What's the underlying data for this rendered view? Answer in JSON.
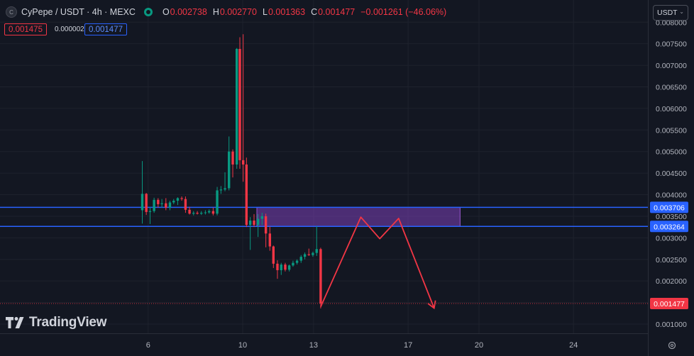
{
  "header": {
    "symbol_icon": "C",
    "symbol": "CyPepe / USDT · 4h · MEXC",
    "status_icon": "market-open-dot",
    "open_key": "O",
    "open": "0.002738",
    "high_key": "H",
    "high": "0.002770",
    "low_key": "L",
    "low": "0.001363",
    "close_key": "C",
    "close": "0.001477",
    "change": "−0.001261 (−46.06%)"
  },
  "price_boxes": {
    "bid": "0.001475",
    "spread": "0.000002",
    "ask": "0.001477"
  },
  "currency": {
    "label": "USDT",
    "icon": "chevron-down-icon"
  },
  "logo": {
    "text": "TradingView"
  },
  "colors": {
    "background": "#131722",
    "up": "#089981",
    "down": "#f23645",
    "level_line": "#2962ff",
    "zone_fill": "#7b3fb8",
    "projection": "#f23645",
    "grid": "#1e222d"
  },
  "chart_data": {
    "type": "candlestick",
    "y_axis": {
      "range": [
        0.00065,
        0.0079
      ],
      "ticks": [
        "0.001000",
        "0.001500",
        "0.002000",
        "0.002500",
        "0.003000",
        "0.003500",
        "0.004000",
        "0.004500",
        "0.005000",
        "0.005500",
        "0.006000",
        "0.006500",
        "0.007000",
        "0.007500",
        "0.008000"
      ],
      "tick_values": [
        0.001,
        0.0015,
        0.002,
        0.0025,
        0.003,
        0.0035,
        0.004,
        0.0045,
        0.005,
        0.0055,
        0.006,
        0.0065,
        0.007,
        0.0075,
        0.008
      ]
    },
    "x_axis": {
      "range": [
        0,
        34
      ],
      "ticks": [
        {
          "x": 5.7,
          "label": "6"
        },
        {
          "x": 9.7,
          "label": "10"
        },
        {
          "x": 12.7,
          "label": "13"
        },
        {
          "x": 16.7,
          "label": "17"
        },
        {
          "x": 19.7,
          "label": "20"
        },
        {
          "x": 23.7,
          "label": "24"
        }
      ]
    },
    "candles": [
      {
        "x": 5.45,
        "o": 0.00364,
        "h": 0.00478,
        "l": 0.00333,
        "c": 0.00402
      },
      {
        "x": 5.62,
        "o": 0.00402,
        "h": 0.00404,
        "l": 0.00353,
        "c": 0.0036
      },
      {
        "x": 5.78,
        "o": 0.0036,
        "h": 0.00372,
        "l": 0.00332,
        "c": 0.00362
      },
      {
        "x": 5.95,
        "o": 0.00362,
        "h": 0.00393,
        "l": 0.00358,
        "c": 0.00388
      },
      {
        "x": 6.12,
        "o": 0.00388,
        "h": 0.00392,
        "l": 0.0037,
        "c": 0.00378
      },
      {
        "x": 6.28,
        "o": 0.00378,
        "h": 0.0039,
        "l": 0.0037,
        "c": 0.0038
      },
      {
        "x": 6.45,
        "o": 0.0038,
        "h": 0.00392,
        "l": 0.00364,
        "c": 0.0037
      },
      {
        "x": 6.62,
        "o": 0.0037,
        "h": 0.00386,
        "l": 0.00364,
        "c": 0.00382
      },
      {
        "x": 6.78,
        "o": 0.00382,
        "h": 0.0039,
        "l": 0.00378,
        "c": 0.00386
      },
      {
        "x": 6.95,
        "o": 0.00386,
        "h": 0.00394,
        "l": 0.00376,
        "c": 0.00392
      },
      {
        "x": 7.12,
        "o": 0.00392,
        "h": 0.00396,
        "l": 0.00386,
        "c": 0.0039
      },
      {
        "x": 7.28,
        "o": 0.0039,
        "h": 0.00396,
        "l": 0.00358,
        "c": 0.00365
      },
      {
        "x": 7.45,
        "o": 0.00365,
        "h": 0.00372,
        "l": 0.00354,
        "c": 0.00356
      },
      {
        "x": 7.62,
        "o": 0.00356,
        "h": 0.00362,
        "l": 0.00352,
        "c": 0.00358
      },
      {
        "x": 7.78,
        "o": 0.00358,
        "h": 0.00362,
        "l": 0.00354,
        "c": 0.00356
      },
      {
        "x": 7.95,
        "o": 0.00356,
        "h": 0.00362,
        "l": 0.00353,
        "c": 0.00358
      },
      {
        "x": 8.12,
        "o": 0.00358,
        "h": 0.00364,
        "l": 0.00354,
        "c": 0.00359
      },
      {
        "x": 8.28,
        "o": 0.00359,
        "h": 0.00366,
        "l": 0.00356,
        "c": 0.00362
      },
      {
        "x": 8.45,
        "o": 0.00362,
        "h": 0.0037,
        "l": 0.00352,
        "c": 0.00356
      },
      {
        "x": 8.62,
        "o": 0.00356,
        "h": 0.00418,
        "l": 0.00352,
        "c": 0.0041
      },
      {
        "x": 8.78,
        "o": 0.0041,
        "h": 0.0042,
        "l": 0.00402,
        "c": 0.00412
      },
      {
        "x": 8.95,
        "o": 0.00412,
        "h": 0.00452,
        "l": 0.00408,
        "c": 0.00415
      },
      {
        "x": 9.12,
        "o": 0.00415,
        "h": 0.00535,
        "l": 0.0041,
        "c": 0.005
      },
      {
        "x": 9.28,
        "o": 0.005,
        "h": 0.00505,
        "l": 0.0044,
        "c": 0.0047
      },
      {
        "x": 9.45,
        "o": 0.0047,
        "h": 0.0074,
        "l": 0.0046,
        "c": 0.00738
      },
      {
        "x": 9.58,
        "o": 0.00738,
        "h": 0.00765,
        "l": 0.0046,
        "c": 0.0048
      },
      {
        "x": 9.72,
        "o": 0.0048,
        "h": 0.00772,
        "l": 0.0043,
        "c": 0.0047
      },
      {
        "x": 9.86,
        "o": 0.0047,
        "h": 0.00486,
        "l": 0.00325,
        "c": 0.0033
      },
      {
        "x": 10.02,
        "o": 0.0033,
        "h": 0.00348,
        "l": 0.00272,
        "c": 0.0034
      },
      {
        "x": 10.18,
        "o": 0.0034,
        "h": 0.00355,
        "l": 0.00325,
        "c": 0.0033
      },
      {
        "x": 10.35,
        "o": 0.0033,
        "h": 0.00355,
        "l": 0.00302,
        "c": 0.00344
      },
      {
        "x": 10.52,
        "o": 0.00344,
        "h": 0.00358,
        "l": 0.0033,
        "c": 0.0035
      },
      {
        "x": 10.68,
        "o": 0.0035,
        "h": 0.00356,
        "l": 0.00278,
        "c": 0.0031
      },
      {
        "x": 10.85,
        "o": 0.0031,
        "h": 0.00326,
        "l": 0.0027,
        "c": 0.0028
      },
      {
        "x": 11.0,
        "o": 0.0028,
        "h": 0.00282,
        "l": 0.0023,
        "c": 0.0024
      },
      {
        "x": 11.17,
        "o": 0.0024,
        "h": 0.00248,
        "l": 0.00205,
        "c": 0.00225
      },
      {
        "x": 11.33,
        "o": 0.00225,
        "h": 0.00242,
        "l": 0.00214,
        "c": 0.00238
      },
      {
        "x": 11.5,
        "o": 0.00238,
        "h": 0.00242,
        "l": 0.00222,
        "c": 0.00226
      },
      {
        "x": 11.67,
        "o": 0.00226,
        "h": 0.00238,
        "l": 0.00222,
        "c": 0.00236
      },
      {
        "x": 11.83,
        "o": 0.00236,
        "h": 0.00247,
        "l": 0.00233,
        "c": 0.00242
      },
      {
        "x": 12.0,
        "o": 0.00242,
        "h": 0.0025,
        "l": 0.00238,
        "c": 0.00247
      },
      {
        "x": 12.17,
        "o": 0.00247,
        "h": 0.0026,
        "l": 0.00242,
        "c": 0.00256
      },
      {
        "x": 12.33,
        "o": 0.00256,
        "h": 0.00266,
        "l": 0.0025,
        "c": 0.00262
      },
      {
        "x": 12.5,
        "o": 0.00262,
        "h": 0.00275,
        "l": 0.00258,
        "c": 0.0026
      },
      {
        "x": 12.67,
        "o": 0.0026,
        "h": 0.00268,
        "l": 0.00256,
        "c": 0.00265
      },
      {
        "x": 12.83,
        "o": 0.00265,
        "h": 0.00327,
        "l": 0.00258,
        "c": 0.002738
      },
      {
        "x": 13.0,
        "o": 0.002738,
        "h": 0.00277,
        "l": 0.001363,
        "c": 0.001477
      }
    ],
    "levels": [
      {
        "value": 0.003706,
        "label": "0.003706"
      },
      {
        "value": 0.003264,
        "label": "0.003264"
      }
    ],
    "last_price": {
      "value": 0.001477,
      "label": "0.001477"
    },
    "zone": {
      "x0": 10.3,
      "x1": 18.9,
      "y0": 0.003264,
      "y1": 0.003706
    },
    "projection": [
      {
        "x": 13.0,
        "y": 0.0014
      },
      {
        "x": 14.7,
        "y": 0.00348
      },
      {
        "x": 15.5,
        "y": 0.00298
      },
      {
        "x": 16.3,
        "y": 0.00345
      },
      {
        "x": 17.8,
        "y": 0.00137
      }
    ]
  }
}
